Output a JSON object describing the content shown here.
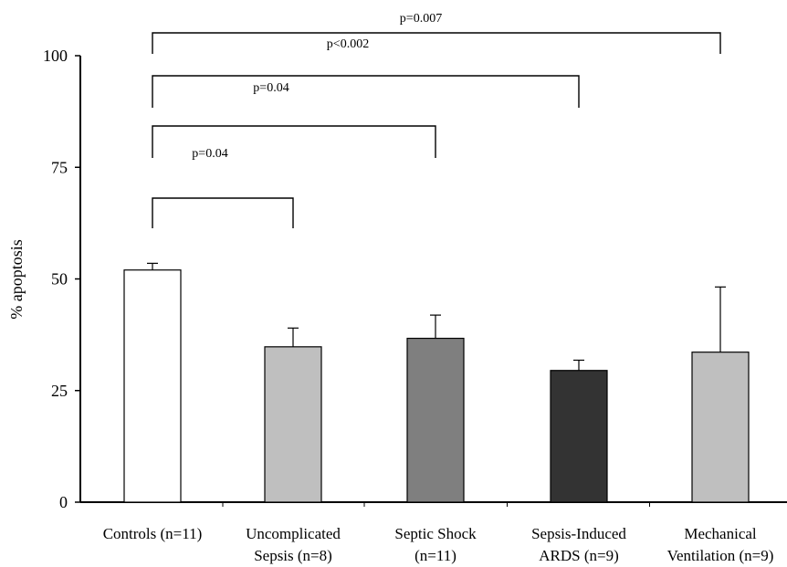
{
  "chart_data": {
    "type": "bar",
    "ylabel": "% apoptosis",
    "ylim": [
      0,
      100
    ],
    "yticks": [
      0,
      25,
      50,
      75,
      100
    ],
    "categories": [
      [
        "Controls (n=11)"
      ],
      [
        "Uncomplicated",
        "Sepsis (n=8)"
      ],
      [
        "Septic Shock",
        "(n=11)"
      ],
      [
        "Sepsis-Induced",
        "ARDS (n=9)"
      ],
      [
        "Mechanical",
        "Ventilation (n=9)"
      ]
    ],
    "values": [
      52,
      34.8,
      36.7,
      29.5,
      33.6
    ],
    "error_upper": [
      1.5,
      4.2,
      5.2,
      2.3,
      14.6
    ],
    "bar_colors": [
      "#ffffff",
      "#bfbfbf",
      "#7f7f7f",
      "#333333",
      "#bfbfbf"
    ],
    "comparisons": [
      {
        "from": 0,
        "to": 1,
        "bracket_y": 68,
        "label": ""
      },
      {
        "from": 0,
        "to": 2,
        "bracket_y": 84.5,
        "label": "p=0.04"
      },
      {
        "from": 0,
        "to": 3,
        "bracket_y": 95,
        "label": "p=0.04"
      },
      {
        "from": 0,
        "to": 4,
        "bracket_y": 105.5,
        "label": "p<0.002"
      },
      {
        "from": 0,
        "to": 4,
        "bracket_y": 105.5,
        "label": "p=0.007"
      }
    ]
  }
}
